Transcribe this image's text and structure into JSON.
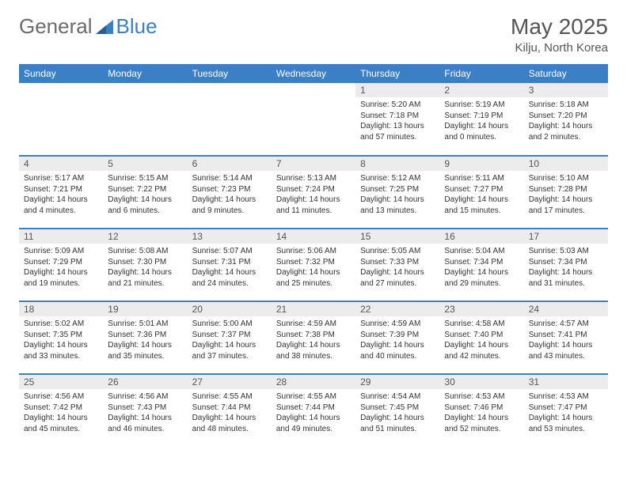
{
  "brand": {
    "part1": "General",
    "part2": "Blue"
  },
  "title": "May 2025",
  "location": "Kilju, North Korea",
  "colors": {
    "header_bg": "#3b7fc4",
    "header_text": "#ffffff",
    "daynum_bg": "#ececec",
    "border": "#3b7fc4",
    "body_text": "#333333",
    "brand_gray": "#6b6b6b"
  },
  "layout": {
    "columns": 7,
    "weeks": 5,
    "first_weekday_index": 4
  },
  "day_labels": [
    "Sunday",
    "Monday",
    "Tuesday",
    "Wednesday",
    "Thursday",
    "Friday",
    "Saturday"
  ],
  "days": [
    {
      "n": 1,
      "sunrise": "5:20 AM",
      "sunset": "7:18 PM",
      "daylight": "13 hours and 57 minutes."
    },
    {
      "n": 2,
      "sunrise": "5:19 AM",
      "sunset": "7:19 PM",
      "daylight": "14 hours and 0 minutes."
    },
    {
      "n": 3,
      "sunrise": "5:18 AM",
      "sunset": "7:20 PM",
      "daylight": "14 hours and 2 minutes."
    },
    {
      "n": 4,
      "sunrise": "5:17 AM",
      "sunset": "7:21 PM",
      "daylight": "14 hours and 4 minutes."
    },
    {
      "n": 5,
      "sunrise": "5:15 AM",
      "sunset": "7:22 PM",
      "daylight": "14 hours and 6 minutes."
    },
    {
      "n": 6,
      "sunrise": "5:14 AM",
      "sunset": "7:23 PM",
      "daylight": "14 hours and 9 minutes."
    },
    {
      "n": 7,
      "sunrise": "5:13 AM",
      "sunset": "7:24 PM",
      "daylight": "14 hours and 11 minutes."
    },
    {
      "n": 8,
      "sunrise": "5:12 AM",
      "sunset": "7:25 PM",
      "daylight": "14 hours and 13 minutes."
    },
    {
      "n": 9,
      "sunrise": "5:11 AM",
      "sunset": "7:27 PM",
      "daylight": "14 hours and 15 minutes."
    },
    {
      "n": 10,
      "sunrise": "5:10 AM",
      "sunset": "7:28 PM",
      "daylight": "14 hours and 17 minutes."
    },
    {
      "n": 11,
      "sunrise": "5:09 AM",
      "sunset": "7:29 PM",
      "daylight": "14 hours and 19 minutes."
    },
    {
      "n": 12,
      "sunrise": "5:08 AM",
      "sunset": "7:30 PM",
      "daylight": "14 hours and 21 minutes."
    },
    {
      "n": 13,
      "sunrise": "5:07 AM",
      "sunset": "7:31 PM",
      "daylight": "14 hours and 24 minutes."
    },
    {
      "n": 14,
      "sunrise": "5:06 AM",
      "sunset": "7:32 PM",
      "daylight": "14 hours and 25 minutes."
    },
    {
      "n": 15,
      "sunrise": "5:05 AM",
      "sunset": "7:33 PM",
      "daylight": "14 hours and 27 minutes."
    },
    {
      "n": 16,
      "sunrise": "5:04 AM",
      "sunset": "7:34 PM",
      "daylight": "14 hours and 29 minutes."
    },
    {
      "n": 17,
      "sunrise": "5:03 AM",
      "sunset": "7:34 PM",
      "daylight": "14 hours and 31 minutes."
    },
    {
      "n": 18,
      "sunrise": "5:02 AM",
      "sunset": "7:35 PM",
      "daylight": "14 hours and 33 minutes."
    },
    {
      "n": 19,
      "sunrise": "5:01 AM",
      "sunset": "7:36 PM",
      "daylight": "14 hours and 35 minutes."
    },
    {
      "n": 20,
      "sunrise": "5:00 AM",
      "sunset": "7:37 PM",
      "daylight": "14 hours and 37 minutes."
    },
    {
      "n": 21,
      "sunrise": "4:59 AM",
      "sunset": "7:38 PM",
      "daylight": "14 hours and 38 minutes."
    },
    {
      "n": 22,
      "sunrise": "4:59 AM",
      "sunset": "7:39 PM",
      "daylight": "14 hours and 40 minutes."
    },
    {
      "n": 23,
      "sunrise": "4:58 AM",
      "sunset": "7:40 PM",
      "daylight": "14 hours and 42 minutes."
    },
    {
      "n": 24,
      "sunrise": "4:57 AM",
      "sunset": "7:41 PM",
      "daylight": "14 hours and 43 minutes."
    },
    {
      "n": 25,
      "sunrise": "4:56 AM",
      "sunset": "7:42 PM",
      "daylight": "14 hours and 45 minutes."
    },
    {
      "n": 26,
      "sunrise": "4:56 AM",
      "sunset": "7:43 PM",
      "daylight": "14 hours and 46 minutes."
    },
    {
      "n": 27,
      "sunrise": "4:55 AM",
      "sunset": "7:44 PM",
      "daylight": "14 hours and 48 minutes."
    },
    {
      "n": 28,
      "sunrise": "4:55 AM",
      "sunset": "7:44 PM",
      "daylight": "14 hours and 49 minutes."
    },
    {
      "n": 29,
      "sunrise": "4:54 AM",
      "sunset": "7:45 PM",
      "daylight": "14 hours and 51 minutes."
    },
    {
      "n": 30,
      "sunrise": "4:53 AM",
      "sunset": "7:46 PM",
      "daylight": "14 hours and 52 minutes."
    },
    {
      "n": 31,
      "sunrise": "4:53 AM",
      "sunset": "7:47 PM",
      "daylight": "14 hours and 53 minutes."
    }
  ],
  "labels": {
    "sunrise": "Sunrise: ",
    "sunset": "Sunset: ",
    "daylight": "Daylight: "
  }
}
